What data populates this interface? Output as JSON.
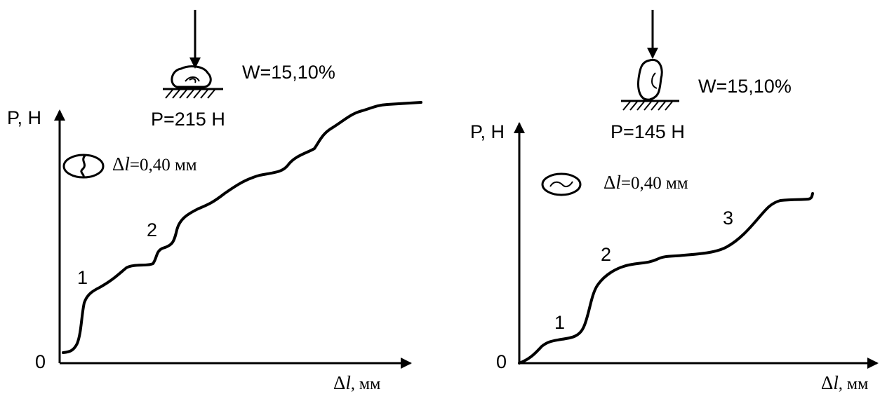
{
  "panels": [
    {
      "moisture": "W=15,10%",
      "load": "P=215 Н",
      "y_axis_label": "P, Н",
      "origin": "0",
      "deformation": {
        "symbol": "Δ",
        "variable": "l",
        "value": "=0,40 мм"
      },
      "x_axis_label": {
        "symbol": "Δ",
        "variable": "l",
        "unit": ", мм"
      },
      "stage_labels": [
        "1",
        "2"
      ]
    },
    {
      "moisture": "W=15,10%",
      "load": "P=145 Н",
      "y_axis_label": "P, Н",
      "origin": "0",
      "deformation": {
        "symbol": "Δ",
        "variable": "l",
        "value": "=0,40 мм"
      },
      "x_axis_label": {
        "symbol": "Δ",
        "variable": "l",
        "unit": ", мм"
      },
      "stage_labels": [
        "1",
        "2",
        "3"
      ]
    }
  ]
}
